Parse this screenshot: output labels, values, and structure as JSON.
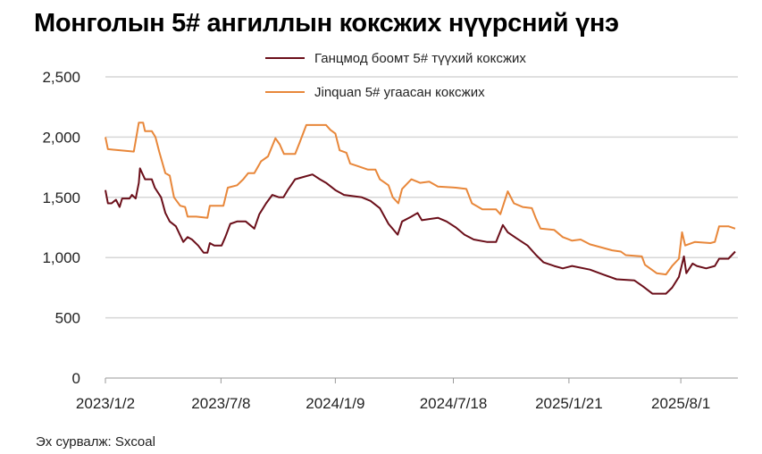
{
  "chart_data": {
    "type": "line",
    "title": "Монголын 5# ангиллын коксжих нүүрсний үнэ",
    "source": "Эх сурвалж: Sxcoal",
    "xlabel": "",
    "ylabel": "",
    "x_unit": "days since 2023-01-02",
    "ylim": [
      0,
      2500
    ],
    "yticks": [
      0,
      500,
      1000,
      1500,
      2000,
      2500
    ],
    "ytick_labels": [
      "0",
      "500",
      "1,000",
      "1,500",
      "2,000",
      "2,500"
    ],
    "xticks": [
      {
        "label": "2023/1/2",
        "day": 0
      },
      {
        "label": "2023/7/8",
        "day": 187
      },
      {
        "label": "2024/1/9",
        "day": 372
      },
      {
        "label": "2024/7/18",
        "day": 563
      },
      {
        "label": "2025/1/21",
        "day": 750
      },
      {
        "label": "2025/8/1",
        "day": 931
      }
    ],
    "xlim": [
      0,
      1019
    ],
    "grid": true,
    "legend_position": "top-center",
    "series": [
      {
        "name": "Ганцмод боомт 5# түүхий коксжих",
        "color": "#6b0f1a",
        "x": [
          0,
          4,
          10,
          17,
          23,
          27,
          39,
          43,
          49,
          54,
          56,
          64,
          75,
          80,
          90,
          97,
          104,
          114,
          126,
          133,
          140,
          150,
          159,
          165,
          169,
          176,
          188,
          194,
          202,
          213,
          227,
          234,
          241,
          249,
          260,
          270,
          281,
          288,
          295,
          307,
          321,
          335,
          347,
          357,
          372,
          386,
          415,
          429,
          444,
          458,
          473,
          480,
          495,
          505,
          512,
          524,
          538,
          552,
          567,
          581,
          596,
          617,
          632,
          643,
          651,
          665,
          683,
          697,
          709,
          726,
          740,
          755,
          784,
          805,
          827,
          856,
          870,
          885,
          907,
          917,
          928,
          936,
          940,
          950,
          957,
          972,
          986,
          993,
          1008,
          1019
        ],
        "y": [
          1560,
          1450,
          1450,
          1480,
          1420,
          1490,
          1490,
          1520,
          1490,
          1620,
          1740,
          1650,
          1650,
          1580,
          1500,
          1370,
          1300,
          1260,
          1130,
          1170,
          1150,
          1100,
          1040,
          1040,
          1120,
          1100,
          1100,
          1170,
          1280,
          1300,
          1300,
          1270,
          1240,
          1360,
          1450,
          1520,
          1500,
          1500,
          1560,
          1650,
          1670,
          1690,
          1650,
          1620,
          1560,
          1520,
          1500,
          1470,
          1410,
          1280,
          1190,
          1300,
          1340,
          1370,
          1310,
          1320,
          1330,
          1300,
          1250,
          1190,
          1150,
          1130,
          1130,
          1270,
          1210,
          1160,
          1100,
          1020,
          960,
          930,
          910,
          930,
          900,
          860,
          820,
          810,
          760,
          700,
          700,
          750,
          840,
          1010,
          870,
          950,
          930,
          910,
          930,
          990,
          990,
          1050
        ]
      },
      {
        "name": "Jinquan 5# угаасан коксжих",
        "color": "#e8873a",
        "x": [
          0,
          4,
          46,
          54,
          61,
          64,
          75,
          81,
          87,
          97,
          104,
          111,
          121,
          129,
          133,
          147,
          165,
          169,
          184,
          191,
          198,
          213,
          223,
          231,
          241,
          252,
          263,
          275,
          282,
          289,
          307,
          314,
          325,
          357,
          364,
          372,
          379,
          390,
          396,
          408,
          425,
          437,
          444,
          458,
          465,
          474,
          480,
          495,
          509,
          524,
          538,
          567,
          584,
          593,
          610,
          632,
          639,
          651,
          661,
          675,
          690,
          697,
          704,
          726,
          740,
          755,
          769,
          784,
          820,
          834,
          842,
          868,
          873,
          892,
          907,
          917,
          928,
          933,
          938,
          954,
          979,
          986,
          993,
          1008,
          1019
        ],
        "y": [
          2000,
          1900,
          1880,
          2120,
          2120,
          2050,
          2050,
          2000,
          1880,
          1700,
          1680,
          1500,
          1430,
          1420,
          1340,
          1340,
          1330,
          1430,
          1430,
          1430,
          1580,
          1600,
          1650,
          1700,
          1700,
          1800,
          1840,
          1990,
          1940,
          1860,
          1860,
          1950,
          2100,
          2100,
          2060,
          2030,
          1890,
          1870,
          1780,
          1760,
          1730,
          1730,
          1650,
          1600,
          1500,
          1450,
          1570,
          1650,
          1620,
          1630,
          1590,
          1580,
          1570,
          1450,
          1400,
          1400,
          1360,
          1550,
          1450,
          1420,
          1410,
          1320,
          1240,
          1230,
          1170,
          1140,
          1150,
          1110,
          1060,
          1050,
          1020,
          1010,
          940,
          870,
          860,
          930,
          990,
          1210,
          1100,
          1130,
          1120,
          1130,
          1260,
          1260,
          1240
        ]
      }
    ]
  }
}
